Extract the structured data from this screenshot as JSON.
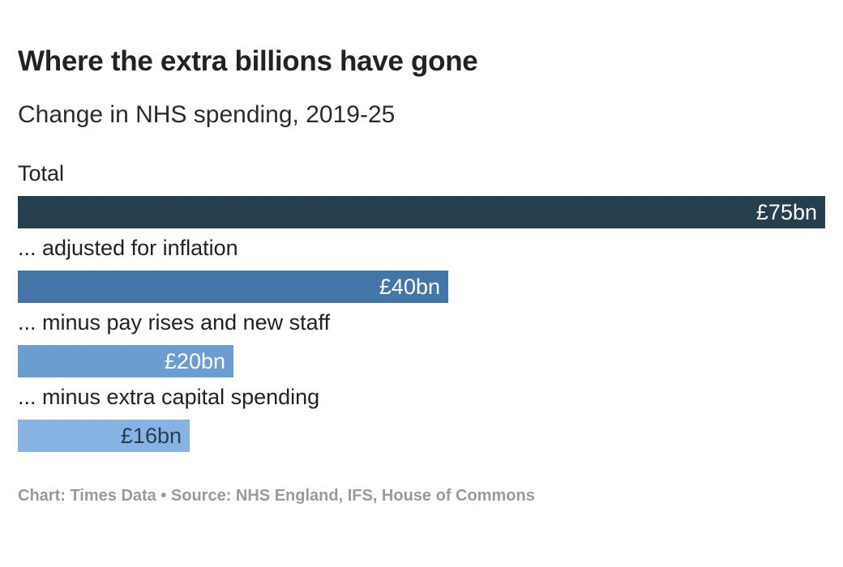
{
  "chart_data": {
    "type": "bar",
    "orientation": "horizontal",
    "title": "Where the extra billions have gone",
    "subtitle": "Change in NHS spending, 2019-25",
    "categories": [
      "Total",
      "... adjusted for inflation",
      "... minus pay rises and new staff",
      "... minus extra capital spending"
    ],
    "values": [
      75,
      40,
      20,
      16
    ],
    "value_labels": [
      "£75bn",
      "£40bn",
      "£20bn",
      "£16bn"
    ],
    "units": "£bn",
    "xlim": [
      0,
      75
    ],
    "xlabel": "",
    "ylabel": "",
    "grid": false,
    "legend": "none",
    "colors": [
      "#253f4e",
      "#4376a7",
      "#6a9dd0",
      "#86b3e3"
    ],
    "label_colors": [
      "#ffffff",
      "#ffffff",
      "#ffffff",
      "#253f4e"
    ]
  },
  "footer": {
    "text": "Chart: Times Data • Source: NHS England, IFS, House of Commons"
  }
}
